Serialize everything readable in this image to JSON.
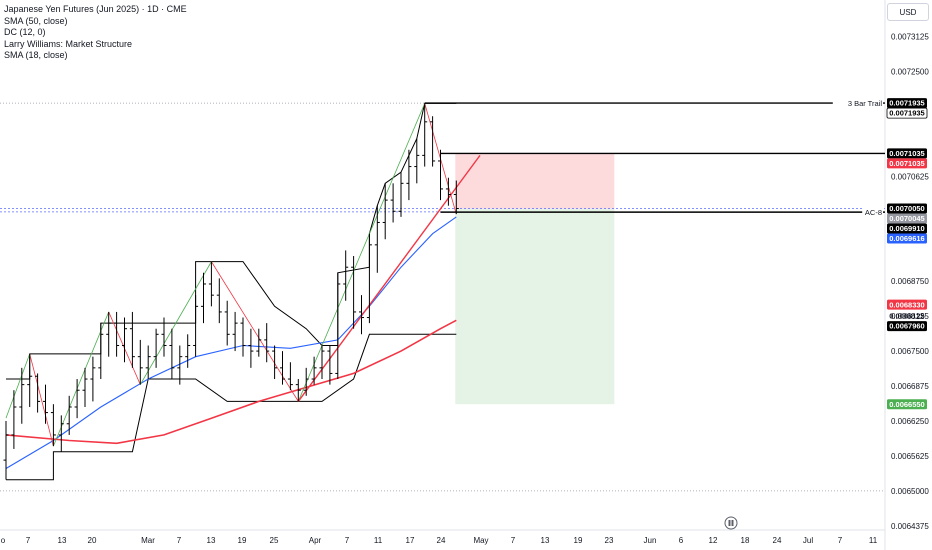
{
  "legend": {
    "title": "Japanese Yen Futures (Jun 2025) · 1D · CME",
    "indicators": [
      "SMA (50, close)",
      "DC (12, 0)",
      "Larry Williams: Market Structure",
      "SMA (18, close)"
    ]
  },
  "currency_button": "USD",
  "watermark_icon": "tradingview-logo-icon",
  "colors": {
    "bull_wick": "#000000",
    "zigzag_up": "#4caf50",
    "zigzag_down": "#f23645",
    "donchian": "#000000",
    "sma18": "#2962ff",
    "sma50": "#f23645",
    "trend_line": "#f23645",
    "stop_zone": "#f23645",
    "target_zone": "#4caf50"
  },
  "chart_data": {
    "type": "ohlc",
    "symbol": "Japanese Yen Futures (Jun 2025)",
    "interval": "1D",
    "y_axis": {
      "range": [
        0.00643,
        0.00736
      ],
      "ticks": [
        "0.0073125",
        "0.0072500",
        "0.0070625",
        "0.0068750",
        "0.0068125",
        "0.0067500",
        "0.0066875",
        "0.0066250",
        "0.0065625",
        "0.0065000",
        "0.0064375"
      ]
    },
    "x_axis": {
      "ticks": [
        "o",
        "7",
        "13",
        "20",
        "Mar",
        "7",
        "13",
        "19",
        "25",
        "Apr",
        "7",
        "11",
        "17",
        "24",
        "May",
        "7",
        "13",
        "19",
        "23",
        "Jun",
        "6",
        "12",
        "18",
        "24",
        "Jul",
        "7",
        "11"
      ]
    },
    "bars": [
      [
        0.006555,
        0.006625,
        0.00652,
        0.0066
      ],
      [
        0.0066,
        0.00668,
        0.006575,
        0.00665
      ],
      [
        0.00665,
        0.00672,
        0.00662,
        0.00669
      ],
      [
        0.00669,
        0.006745,
        0.00665,
        0.006705
      ],
      [
        0.006705,
        0.00671,
        0.00664,
        0.00666
      ],
      [
        0.00666,
        0.00669,
        0.00662,
        0.00664
      ],
      [
        0.00664,
        0.006655,
        0.00658,
        0.0066
      ],
      [
        0.0066,
        0.006635,
        0.00657,
        0.00662
      ],
      [
        0.00662,
        0.00667,
        0.0066,
        0.00665
      ],
      [
        0.00665,
        0.0067,
        0.00663,
        0.00668
      ],
      [
        0.00668,
        0.00672,
        0.00665,
        0.0067
      ],
      [
        0.0067,
        0.00674,
        0.00666,
        0.00672
      ],
      [
        0.00672,
        0.0068,
        0.0067,
        0.00678
      ],
      [
        0.00678,
        0.00682,
        0.00674,
        0.0068
      ],
      [
        0.0068,
        0.00682,
        0.00674,
        0.00676
      ],
      [
        0.00676,
        0.00681,
        0.00673,
        0.00679
      ],
      [
        0.00679,
        0.00682,
        0.00672,
        0.00674
      ],
      [
        0.00674,
        0.00677,
        0.00669,
        0.00672
      ],
      [
        0.00672,
        0.00676,
        0.0067,
        0.00674
      ],
      [
        0.00674,
        0.00679,
        0.00672,
        0.00678
      ],
      [
        0.00678,
        0.00681,
        0.00674,
        0.00676
      ],
      [
        0.00676,
        0.00679,
        0.0067,
        0.00672
      ],
      [
        0.00672,
        0.00676,
        0.00669,
        0.00674
      ],
      [
        0.00674,
        0.00678,
        0.00672,
        0.00676
      ],
      [
        0.00676,
        0.00685,
        0.00674,
        0.00683
      ],
      [
        0.00683,
        0.00689,
        0.0068,
        0.00687
      ],
      [
        0.00687,
        0.00691,
        0.00683,
        0.00685
      ],
      [
        0.00685,
        0.00688,
        0.0068,
        0.00682
      ],
      [
        0.00682,
        0.00684,
        0.00676,
        0.00678
      ],
      [
        0.00678,
        0.00682,
        0.00675,
        0.0068
      ],
      [
        0.0068,
        0.00681,
        0.00674,
        0.00676
      ],
      [
        0.00676,
        0.00679,
        0.00672,
        0.00675
      ],
      [
        0.00675,
        0.00679,
        0.00674,
        0.00677
      ],
      [
        0.00677,
        0.0068,
        0.00673,
        0.00675
      ],
      [
        0.00675,
        0.00676,
        0.0067,
        0.00672
      ],
      [
        0.00672,
        0.00675,
        0.00669,
        0.0067
      ],
      [
        0.0067,
        0.00673,
        0.00668,
        0.00669
      ],
      [
        0.00669,
        0.0067,
        0.00666,
        0.00668
      ],
      [
        0.00668,
        0.00672,
        0.00667,
        0.0067
      ],
      [
        0.0067,
        0.00674,
        0.00669,
        0.00672
      ],
      [
        0.00672,
        0.00676,
        0.0067,
        0.00675
      ],
      [
        0.00675,
        0.00676,
        0.00669,
        0.00671
      ],
      [
        0.00671,
        0.00689,
        0.0067,
        0.00687
      ],
      [
        0.00687,
        0.00693,
        0.00684,
        0.0069
      ],
      [
        0.0069,
        0.00692,
        0.00679,
        0.00682
      ],
      [
        0.00682,
        0.00685,
        0.00678,
        0.00681
      ],
      [
        0.00681,
        0.00696,
        0.0068,
        0.00694
      ],
      [
        0.00694,
        0.00701,
        0.00689,
        0.00698
      ],
      [
        0.00698,
        0.00705,
        0.00695,
        0.00702
      ],
      [
        0.00702,
        0.00705,
        0.00698,
        0.007
      ],
      [
        0.007,
        0.00707,
        0.00699,
        0.00705
      ],
      [
        0.00705,
        0.00711,
        0.00702,
        0.00708
      ],
      [
        0.00708,
        0.00713,
        0.00705,
        0.0071
      ],
      [
        0.0071,
        0.007193,
        0.00708,
        0.00716
      ],
      [
        0.00716,
        0.00717,
        0.00708,
        0.00709
      ],
      [
        0.00709,
        0.00711,
        0.00702,
        0.00704
      ],
      [
        0.00704,
        0.00706,
        0.00701,
        0.00703
      ],
      [
        0.00703,
        0.007055,
        0.006995,
        0.007005
      ]
    ],
    "sma18_points": [
      [
        0,
        0.00654
      ],
      [
        6,
        0.00659
      ],
      [
        12,
        0.00665
      ],
      [
        18,
        0.0067
      ],
      [
        24,
        0.00674
      ],
      [
        30,
        0.00676
      ],
      [
        36,
        0.006755
      ],
      [
        42,
        0.00677
      ],
      [
        46,
        0.00683
      ],
      [
        50,
        0.0069
      ],
      [
        54,
        0.00696
      ],
      [
        57,
        0.00699
      ]
    ],
    "sma50_points": [
      [
        0,
        0.0066
      ],
      [
        8,
        0.00659
      ],
      [
        14,
        0.006585
      ],
      [
        20,
        0.0066
      ],
      [
        26,
        0.00663
      ],
      [
        32,
        0.00666
      ],
      [
        38,
        0.006685
      ],
      [
        44,
        0.00671
      ],
      [
        50,
        0.00675
      ],
      [
        55,
        0.00679
      ],
      [
        57,
        0.006805
      ]
    ],
    "donchian_upper_points": [
      [
        0,
        0.0067
      ],
      [
        3,
        0.0067
      ],
      [
        3,
        0.006745
      ],
      [
        12,
        0.006745
      ],
      [
        12,
        0.0068
      ],
      [
        24,
        0.0068
      ],
      [
        24,
        0.00691
      ],
      [
        30,
        0.00691
      ],
      [
        34,
        0.00683
      ],
      [
        38,
        0.00679
      ],
      [
        40,
        0.00676
      ],
      [
        42,
        0.00676
      ],
      [
        42,
        0.00689
      ],
      [
        46,
        0.0069
      ],
      [
        46,
        0.00696
      ],
      [
        47,
        0.00701
      ],
      [
        48,
        0.00705
      ],
      [
        50,
        0.00707
      ],
      [
        52,
        0.00713
      ],
      [
        53,
        0.007193
      ],
      [
        57,
        0.007193
      ]
    ],
    "donchian_lower_points": [
      [
        0,
        0.00652
      ],
      [
        6,
        0.00652
      ],
      [
        6,
        0.00657
      ],
      [
        12,
        0.00657
      ],
      [
        16,
        0.00657
      ],
      [
        18,
        0.0067
      ],
      [
        24,
        0.0067
      ],
      [
        28,
        0.00666
      ],
      [
        34,
        0.00666
      ],
      [
        38,
        0.00666
      ],
      [
        40,
        0.00666
      ],
      [
        44,
        0.0067
      ],
      [
        46,
        0.00678
      ],
      [
        48,
        0.00678
      ],
      [
        57,
        0.00678
      ]
    ],
    "structure_zigzag": [
      [
        0,
        0.00663
      ],
      [
        3,
        0.006745
      ],
      [
        6,
        0.00658
      ],
      [
        13,
        0.00682
      ],
      [
        17,
        0.00669
      ],
      [
        26,
        0.00691
      ],
      [
        37,
        0.00666
      ],
      [
        53,
        0.007193
      ],
      [
        57,
        0.006995
      ]
    ],
    "trend_line": {
      "from": [
        37,
        0.00666
      ],
      "to": [
        60,
        0.0071
      ]
    },
    "levels": [
      {
        "label": "3 Bar Trail",
        "value": 0.0071935,
        "from_bar": 53
      },
      {
        "label": "",
        "value": 0.0071035,
        "from_bar": 55
      },
      {
        "label": "AC-8",
        "value": 0.0069985,
        "from_bar": 55
      }
    ],
    "position": {
      "start_bar": 57,
      "end_bar": 77,
      "entry": 0.0070045,
      "stop": 0.0071035,
      "target": 0.006655
    },
    "price_labels": [
      {
        "text": "0.0071935",
        "value": 0.0071935,
        "style": "black"
      },
      {
        "text": "0.0071935",
        "value": 0.0071935,
        "style": "black-outline"
      },
      {
        "text": "0.0071035",
        "value": 0.0071035,
        "style": "black"
      },
      {
        "text": "0.0071035",
        "value": 0.0071035,
        "style": "red"
      },
      {
        "text": "0.0070050",
        "value": 0.007005,
        "style": "black"
      },
      {
        "text": "0.0070045",
        "value": 0.0070045,
        "style": "gray"
      },
      {
        "text": "0.0069910",
        "value": 0.006991,
        "style": "black"
      },
      {
        "text": "0.0069616",
        "value": 0.0069616,
        "style": "blue"
      },
      {
        "text": "0.0068330",
        "value": 0.006833,
        "style": "red"
      },
      {
        "text": "0.0068125",
        "value": 0.0068125,
        "style": "plain"
      },
      {
        "text": "0.0067960",
        "value": 0.006796,
        "style": "black"
      },
      {
        "text": "0.0066550",
        "value": 0.006655,
        "style": "green"
      }
    ]
  }
}
